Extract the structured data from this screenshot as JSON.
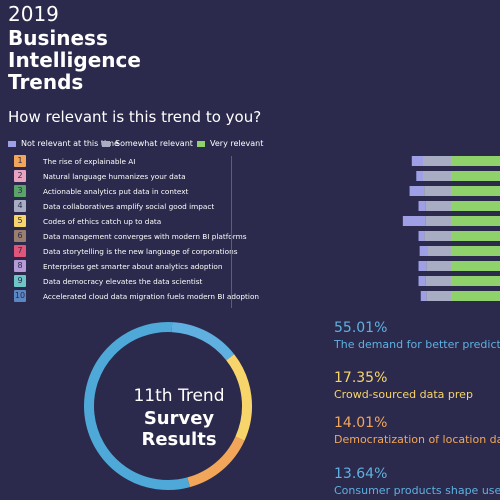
{
  "header": {
    "year": "2019",
    "title_lines": [
      "Business",
      "Intelligence",
      "Trends"
    ],
    "question": "How relevant is this trend to you?"
  },
  "colors": {
    "background": "#2b2a4c",
    "not_relevant": "#9f9fe6",
    "somewhat_relevant": "#a9adc3",
    "very_relevant": "#8fd16a",
    "blue_accent": "#5fb0e0",
    "yellow_accent": "#f7d56b",
    "orange_accent": "#f2a65a"
  },
  "chart_data": [
    {
      "type": "bar",
      "stacked": "diverging",
      "legend_position": "top",
      "series": [
        {
          "name": "Not relevant at this time",
          "color": "#9f9fe6",
          "values": [
            10,
            6,
            13,
            6,
            20,
            5,
            7,
            7,
            6,
            5
          ]
        },
        {
          "name": "Somewhat relevant",
          "color": "#a9adc3",
          "values": [
            25,
            25,
            24,
            23,
            23,
            24,
            21,
            22,
            23,
            22
          ]
        },
        {
          "name": "Very relevant",
          "color": "#8fd16a",
          "values": [
            65,
            69,
            63,
            71,
            57,
            71,
            72,
            71,
            71,
            73
          ]
        }
      ],
      "trends": [
        {
          "num": "1",
          "label": "The rise of explainable AI",
          "color": "#f2a65a"
        },
        {
          "num": "2",
          "label": "Natural language humanizes your data",
          "color": "#e9a3c0"
        },
        {
          "num": "3",
          "label": "Actionable analytics put data in context",
          "color": "#5aa469"
        },
        {
          "num": "4",
          "label": "Data collaboratives amplify social good impact",
          "color": "#a9adc3"
        },
        {
          "num": "5",
          "label": "Codes of ethics catch up to data",
          "color": "#f7d56b"
        },
        {
          "num": "6",
          "label": "Data management converges with modern BI platforms",
          "color": "#9a7f6e"
        },
        {
          "num": "7",
          "label": "Data storytelling is the new language of corporations",
          "color": "#e0567a"
        },
        {
          "num": "8",
          "label": "Enterprises get smarter about analytics adoption",
          "color": "#b79bd6"
        },
        {
          "num": "9",
          "label": "Data democracy elevates the data scientist",
          "color": "#6fc6c6"
        },
        {
          "num": "10",
          "label": "Accelerated cloud data migration fuels modern BI adoption",
          "color": "#5a86c4"
        }
      ]
    },
    {
      "type": "pie",
      "style": "donut",
      "slices": [
        {
          "label": "The demand for better predictive",
          "value": 55.01,
          "color": "#4fa9d8"
        },
        {
          "label": "Crowd-sourced data prep",
          "value": 17.35,
          "color": "#f7d56b"
        },
        {
          "label": "Democratization of location data",
          "value": 14.01,
          "color": "#f2a65a"
        },
        {
          "label": "Consumer products shape users'",
          "value": 13.64,
          "color": "#5fb0e0"
        }
      ]
    }
  ],
  "donut_title": {
    "line1": "11th Trend",
    "line2": "Survey Results"
  },
  "stats": [
    {
      "value": "55.01%",
      "label": "The demand for better predictive",
      "color": "#5fb0e0"
    },
    {
      "value": "17.35%",
      "label": "Crowd-sourced data prep",
      "color": "#f7d56b"
    },
    {
      "value": "14.01%",
      "label": "Democratization of location data",
      "color": "#f2a65a"
    },
    {
      "value": "13.64%",
      "label": "Consumer products shape users'",
      "color": "#5fb0e0"
    }
  ]
}
